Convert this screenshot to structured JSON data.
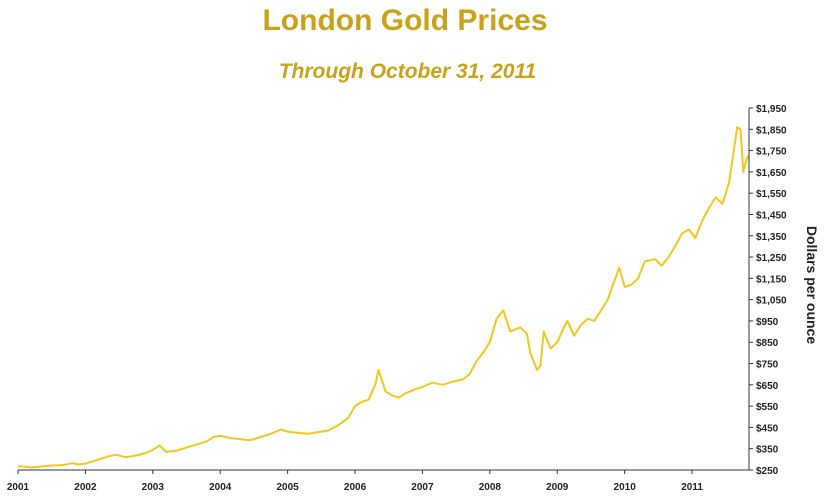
{
  "chart_data": {
    "type": "line",
    "title": "London Gold Prices",
    "subtitle": "Through October 31, 2011",
    "xlabel": "",
    "ylabel": "Dollars per ounce",
    "x_tick_labels": [
      "2001",
      "2002",
      "2003",
      "2004",
      "2005",
      "2006",
      "2007",
      "2008",
      "2009",
      "2010",
      "2011"
    ],
    "y_tick_labels": [
      "$250",
      "$350",
      "$450",
      "$550",
      "$650",
      "$750",
      "$850",
      "$950",
      "$1,050",
      "$1,150",
      "$1,250",
      "$1,350",
      "$1,450",
      "$1,550",
      "$1,650",
      "$1,750",
      "$1,850",
      "$1,950"
    ],
    "ylim": [
      250,
      1950
    ],
    "xlim": [
      2001.0,
      2011.83
    ],
    "grid": false,
    "line_color": "#f2c81c",
    "series": [
      {
        "x": [
          2001.0,
          2001.1,
          2001.2,
          2001.3,
          2001.45,
          2001.6,
          2001.7,
          2001.8,
          2001.9,
          2002.0,
          2002.1,
          2002.2,
          2002.35,
          2002.45,
          2002.6,
          2002.75,
          2002.9,
          2003.0,
          2003.1,
          2003.2,
          2003.35,
          2003.5,
          2003.65,
          2003.8,
          2003.9,
          2004.0,
          2004.15,
          2004.3,
          2004.45,
          2004.6,
          2004.75,
          2004.9,
          2005.0,
          2005.15,
          2005.3,
          2005.45,
          2005.6,
          2005.75,
          2005.9,
          2006.0,
          2006.1,
          2006.2,
          2006.3,
          2006.35,
          2006.45,
          2006.55,
          2006.65,
          2006.75,
          2006.9,
          2007.0,
          2007.15,
          2007.3,
          2007.45,
          2007.6,
          2007.7,
          2007.8,
          2007.9,
          2008.0,
          2008.1,
          2008.2,
          2008.3,
          2008.45,
          2008.55,
          2008.6,
          2008.7,
          2008.75,
          2008.8,
          2008.9,
          2009.0,
          2009.1,
          2009.15,
          2009.25,
          2009.35,
          2009.45,
          2009.55,
          2009.65,
          2009.75,
          2009.85,
          2009.92,
          2010.0,
          2010.1,
          2010.2,
          2010.3,
          2010.45,
          2010.55,
          2010.65,
          2010.75,
          2010.85,
          2010.95,
          2011.0,
          2011.05,
          2011.15,
          2011.25,
          2011.35,
          2011.45,
          2011.55,
          2011.62,
          2011.67,
          2011.72,
          2011.76,
          2011.8,
          2011.83
        ],
        "y": [
          268,
          266,
          262,
          265,
          270,
          272,
          275,
          282,
          276,
          280,
          290,
          300,
          315,
          322,
          310,
          318,
          330,
          345,
          365,
          335,
          340,
          355,
          370,
          385,
          405,
          410,
          400,
          395,
          390,
          405,
          420,
          440,
          430,
          425,
          420,
          428,
          435,
          460,
          495,
          550,
          570,
          580,
          650,
          720,
          620,
          600,
          590,
          610,
          630,
          640,
          660,
          650,
          665,
          675,
          700,
          760,
          800,
          850,
          960,
          1000,
          900,
          920,
          890,
          800,
          720,
          740,
          900,
          820,
          850,
          920,
          950,
          880,
          930,
          960,
          950,
          1000,
          1050,
          1140,
          1200,
          1110,
          1120,
          1150,
          1230,
          1240,
          1210,
          1250,
          1300,
          1360,
          1380,
          1360,
          1340,
          1420,
          1480,
          1530,
          1500,
          1600,
          1750,
          1860,
          1850,
          1650,
          1700,
          1725
        ]
      }
    ]
  }
}
